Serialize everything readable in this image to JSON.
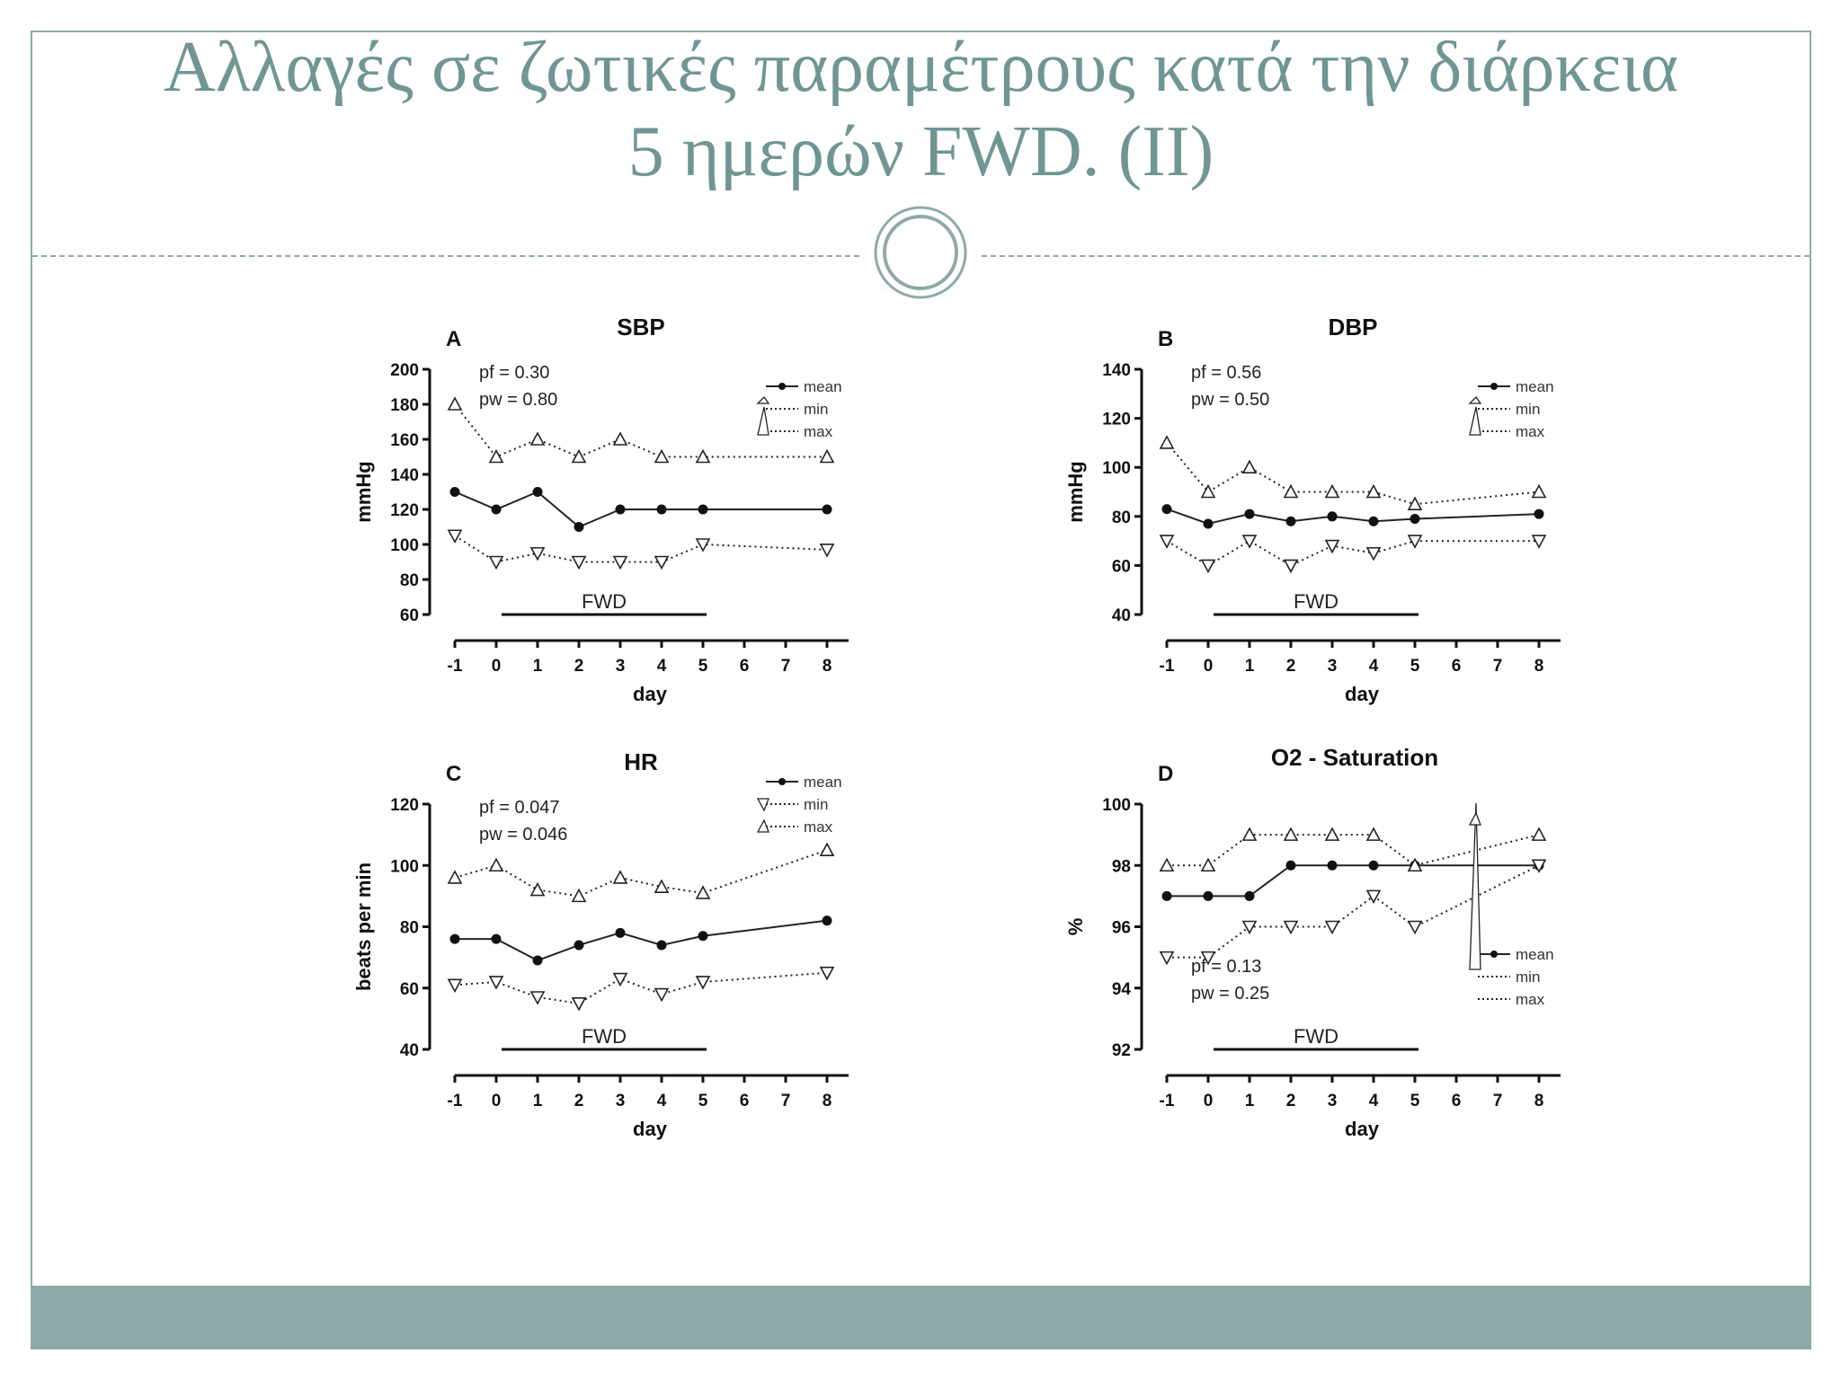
{
  "slide": {
    "title_line1": "Αλλαγές σε ζωτικές παραμέτρους κατά την διάρκεια",
    "title_line2": "5 ημερών FWD. (II)",
    "accent_color": "#8eaaa8",
    "title_color": "#6f9694"
  },
  "chart_data": [
    {
      "id": "A",
      "type": "line",
      "panel_letter": "A",
      "title": "SBP",
      "ylabel": "mmHg",
      "xlabel": "day",
      "ylim": [
        60,
        200
      ],
      "yticks": [
        60,
        80,
        100,
        120,
        140,
        160,
        180,
        200
      ],
      "xticks": [
        -1,
        0,
        1,
        2,
        3,
        4,
        5,
        6,
        7,
        8
      ],
      "x": [
        -1,
        0,
        1,
        2,
        3,
        4,
        5,
        8
      ],
      "series": [
        {
          "name": "mean",
          "marker": "circle",
          "dash": "solid",
          "values": [
            130,
            120,
            130,
            110,
            120,
            120,
            120,
            120
          ]
        },
        {
          "name": "min",
          "marker": "triangle-down",
          "dash": "dotted",
          "values": [
            105,
            90,
            95,
            90,
            90,
            90,
            100,
            97
          ]
        },
        {
          "name": "max",
          "marker": "triangle-up",
          "dash": "dotted",
          "values": [
            180,
            150,
            160,
            150,
            160,
            150,
            150,
            150
          ]
        }
      ],
      "stats": [
        "pf = 0.30",
        "pw = 0.80"
      ],
      "fwd": {
        "label": "FWD",
        "from": 0,
        "to": 5
      },
      "legend_position": "top-right"
    },
    {
      "id": "B",
      "type": "line",
      "panel_letter": "B",
      "title": "DBP",
      "ylabel": "mmHg",
      "xlabel": "day",
      "ylim": [
        40,
        140
      ],
      "yticks": [
        40,
        60,
        80,
        100,
        120,
        140
      ],
      "xticks": [
        -1,
        0,
        1,
        2,
        3,
        4,
        5,
        6,
        7,
        8
      ],
      "x": [
        -1,
        0,
        1,
        2,
        3,
        4,
        5,
        8
      ],
      "series": [
        {
          "name": "mean",
          "marker": "circle",
          "dash": "solid",
          "values": [
            83,
            77,
            81,
            78,
            80,
            78,
            79,
            81
          ]
        },
        {
          "name": "min",
          "marker": "triangle-down",
          "dash": "dotted",
          "values": [
            70,
            60,
            70,
            60,
            68,
            65,
            70,
            70
          ]
        },
        {
          "name": "max",
          "marker": "triangle-up",
          "dash": "dotted",
          "values": [
            110,
            90,
            100,
            90,
            90,
            90,
            85,
            90
          ]
        }
      ],
      "stats": [
        "pf = 0.56",
        "pw = 0.50"
      ],
      "fwd": {
        "label": "FWD",
        "from": 0,
        "to": 5
      },
      "legend_position": "top-right"
    },
    {
      "id": "C",
      "type": "line",
      "panel_letter": "C",
      "title": "HR",
      "ylabel": "beats per min",
      "xlabel": "day",
      "ylim": [
        40,
        120
      ],
      "yticks": [
        40,
        60,
        80,
        100,
        120
      ],
      "xticks": [
        -1,
        0,
        1,
        2,
        3,
        4,
        5,
        6,
        7,
        8
      ],
      "x": [
        -1,
        0,
        1,
        2,
        3,
        4,
        5,
        8
      ],
      "series": [
        {
          "name": "mean",
          "marker": "circle",
          "dash": "solid",
          "values": [
            76,
            76,
            69,
            74,
            78,
            74,
            77,
            82
          ]
        },
        {
          "name": "min",
          "marker": "triangle-down",
          "dash": "dotted",
          "values": [
            61,
            62,
            57,
            55,
            63,
            58,
            62,
            65
          ]
        },
        {
          "name": "max",
          "marker": "triangle-up",
          "dash": "dotted",
          "values": [
            96,
            100,
            92,
            90,
            96,
            93,
            91,
            105
          ]
        }
      ],
      "stats": [
        "pf = 0.047",
        "pw = 0.046"
      ],
      "fwd": {
        "label": "FWD",
        "from": 0,
        "to": 5
      },
      "legend_position": "top-right"
    },
    {
      "id": "D",
      "type": "line",
      "panel_letter": "D",
      "title": "O2 - Saturation",
      "ylabel": "%",
      "xlabel": "day",
      "ylim": [
        92,
        100
      ],
      "yticks": [
        92,
        94,
        96,
        98,
        100
      ],
      "xticks": [
        -1,
        0,
        1,
        2,
        3,
        4,
        5,
        6,
        7,
        8
      ],
      "x": [
        -1,
        0,
        1,
        2,
        3,
        4,
        5,
        8
      ],
      "series": [
        {
          "name": "mean",
          "marker": "circle",
          "dash": "solid",
          "values": [
            97,
            97,
            97,
            98,
            98,
            98,
            98,
            98
          ]
        },
        {
          "name": "min",
          "marker": "triangle-down",
          "dash": "dotted",
          "values": [
            95,
            95,
            96,
            96,
            96,
            97,
            96,
            98
          ]
        },
        {
          "name": "max",
          "marker": "triangle-up",
          "dash": "dotted",
          "values": [
            98,
            98,
            99,
            99,
            99,
            99,
            98,
            99
          ]
        }
      ],
      "stats": [
        "pf = 0.13",
        "pw = 0.25"
      ],
      "fwd": {
        "label": "FWD",
        "from": 0,
        "to": 5
      },
      "legend_position": "bottom-right"
    }
  ]
}
